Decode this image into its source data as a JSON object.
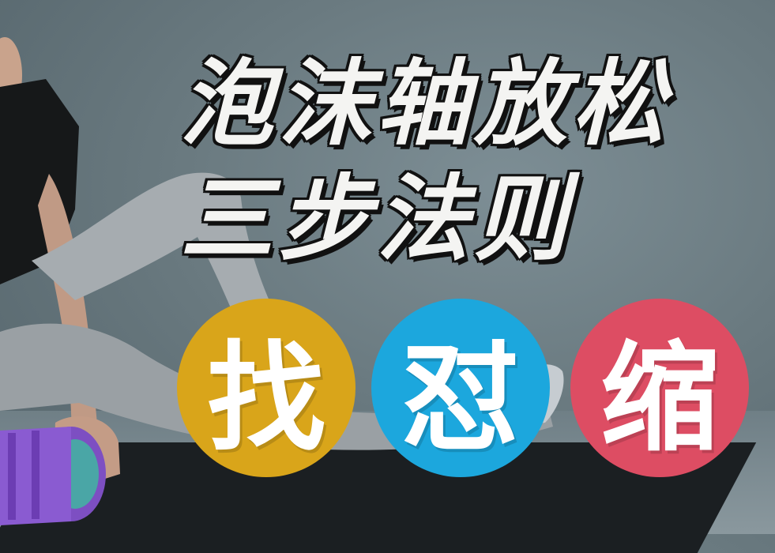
{
  "title": {
    "line1": "泡沫轴放松",
    "line2": "三步法则"
  },
  "steps": [
    {
      "label": "找",
      "color": "#d9a51a"
    },
    {
      "label": "怼",
      "color": "#1ca7dd"
    },
    {
      "label": "缩",
      "color": "#dd4d63"
    }
  ],
  "colors": {
    "background": "#6f7f86",
    "title_text": "#f4f4f2",
    "title_outline": "#111111"
  },
  "icons": [
    "foam-roller-icon"
  ]
}
